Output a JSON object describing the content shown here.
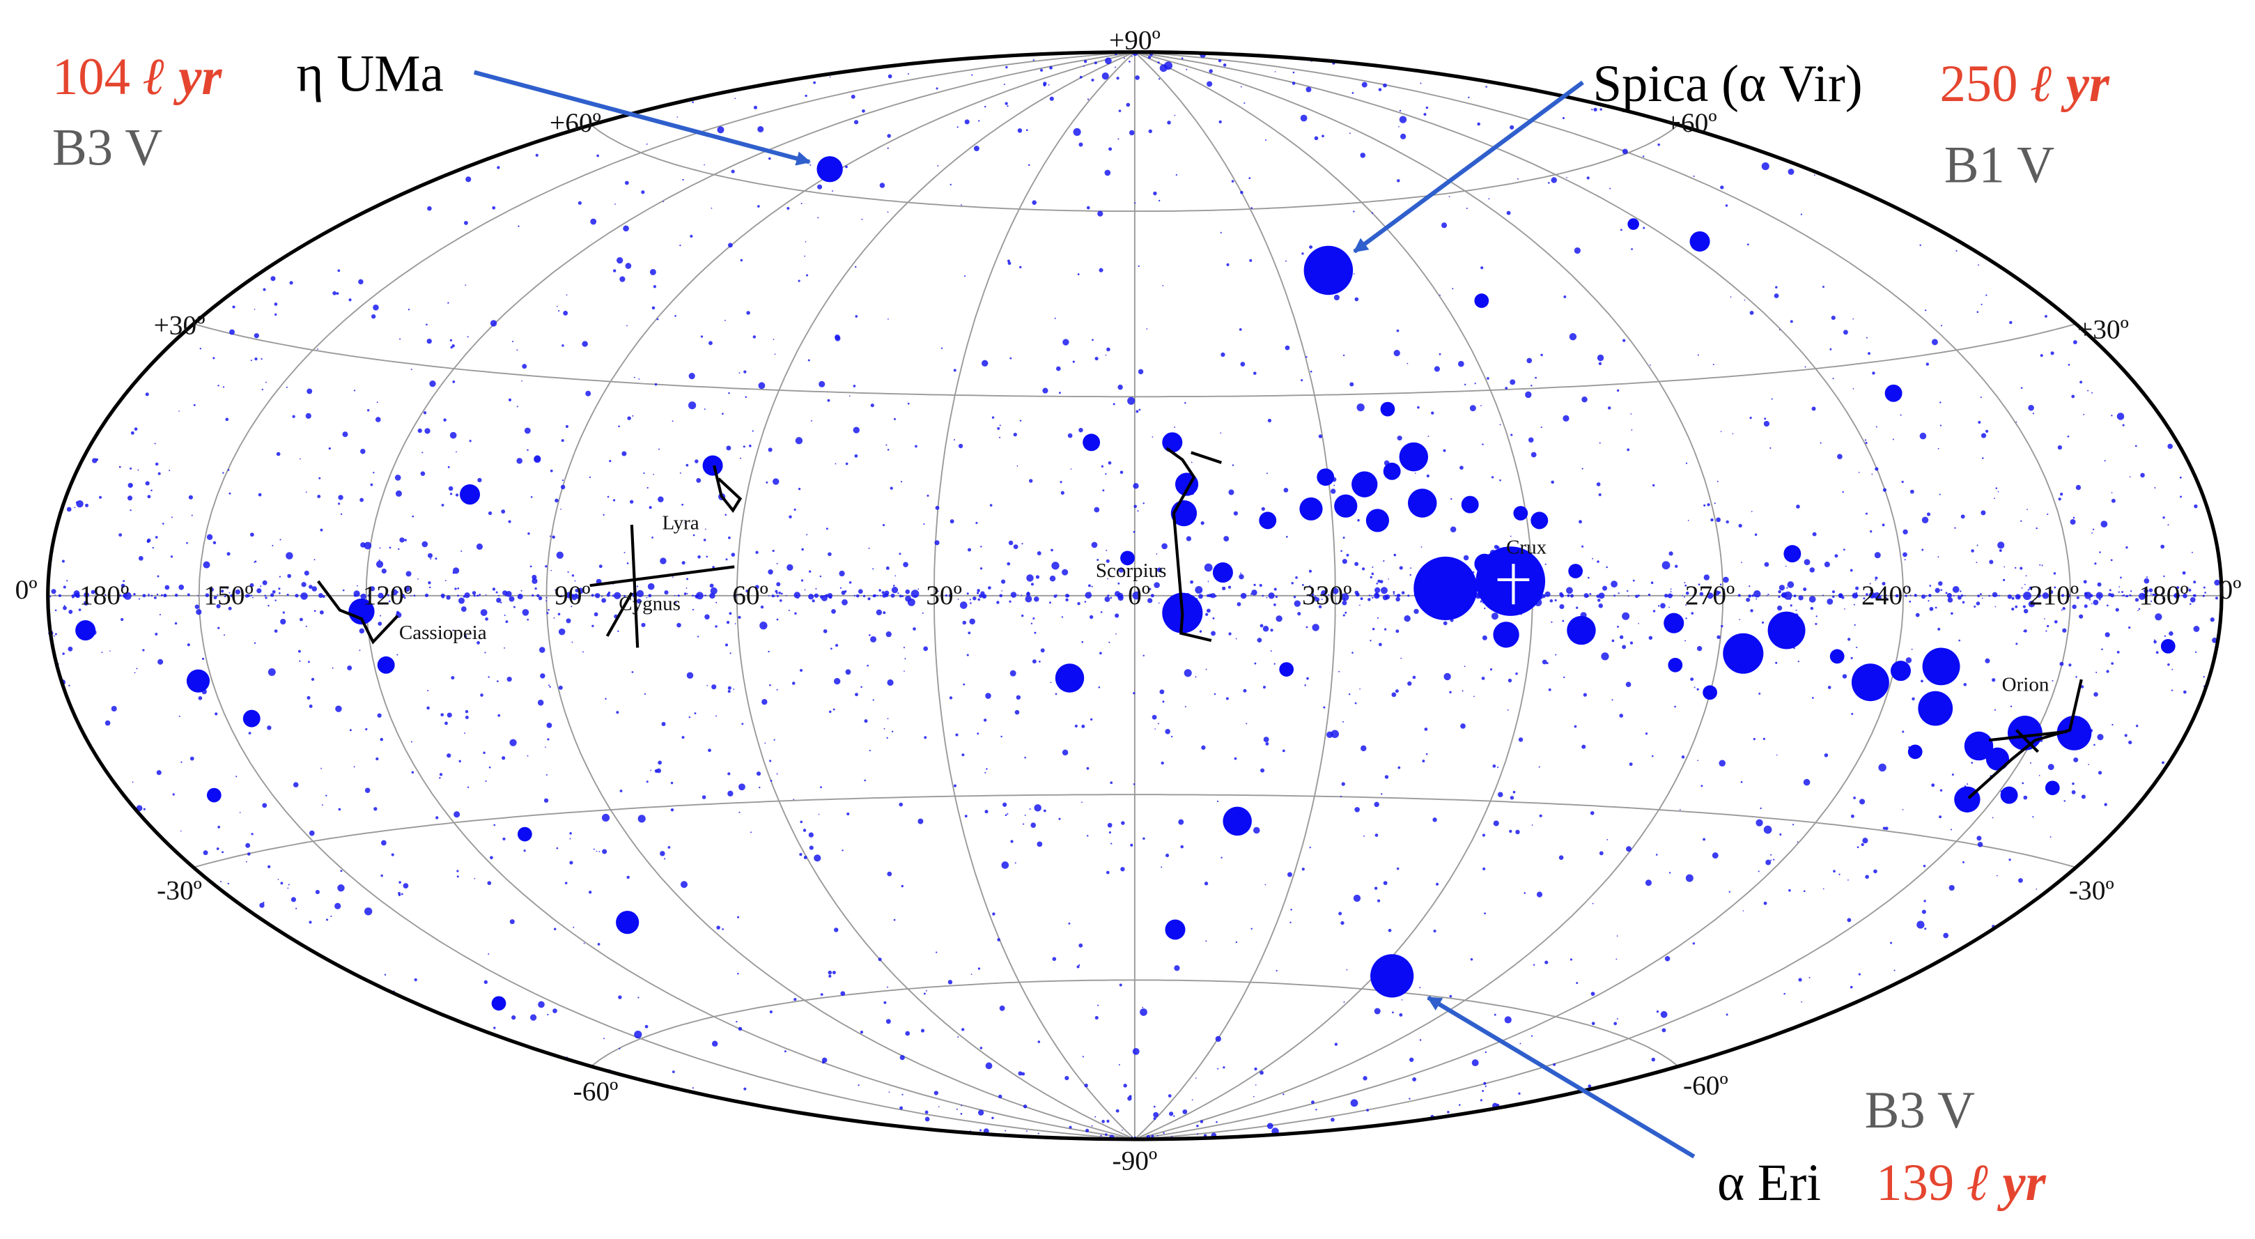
{
  "latitude_labels": [
    "+90º",
    "+60º",
    "+60º",
    "+30º",
    "+30º",
    "0º",
    "0º",
    "-30º",
    "-30º",
    "-60º",
    "-60º",
    "-90º"
  ],
  "longitude_labels": [
    "180º",
    "150º",
    "120º",
    "90º",
    "60º",
    "30º",
    "0º",
    "330º",
    "270º",
    "240º",
    "210º",
    "180º"
  ],
  "constellations": [
    "Cassiopeia",
    "Cygnus",
    "Lyra",
    "Scorpius",
    "Crux",
    "Orion"
  ],
  "annotations": [
    {
      "name": "η UMa",
      "distance": "104",
      "unit": "ℓ yr",
      "spectral_type": "B3 V"
    },
    {
      "name": "Spica (α Vir)",
      "distance": "250",
      "unit": "ℓ yr",
      "spectral_type": "B1 V"
    },
    {
      "name": "α Eri",
      "distance": "139",
      "unit": "ℓ yr",
      "spectral_type": "B3 V"
    }
  ]
}
